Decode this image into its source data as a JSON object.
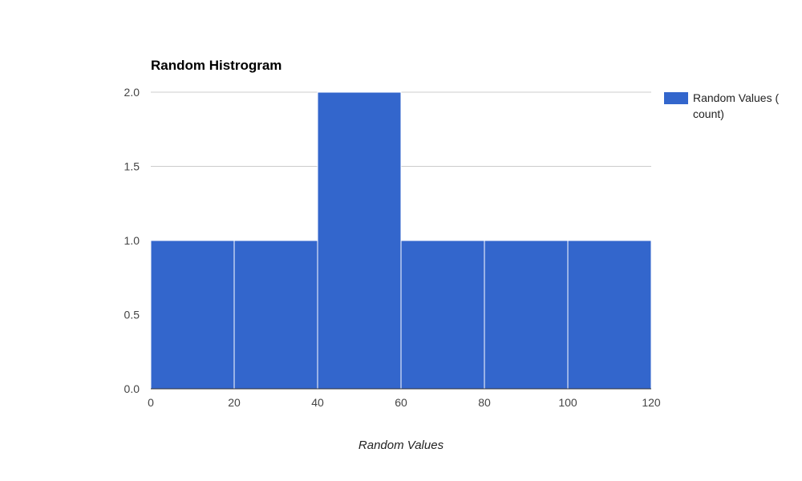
{
  "chart_data": {
    "type": "bar",
    "title": "Random Histrogram",
    "xlabel": "Random Values",
    "ylabel": "",
    "xlim": [
      0,
      120
    ],
    "ylim": [
      0,
      2
    ],
    "x_ticks": [
      0,
      20,
      40,
      60,
      80,
      100,
      120
    ],
    "y_ticks": [
      "0.0",
      "0.5",
      "1.0",
      "1.5",
      "2.0"
    ],
    "bins": [
      {
        "start": 0,
        "end": 20,
        "count": 1
      },
      {
        "start": 20,
        "end": 40,
        "count": 1
      },
      {
        "start": 40,
        "end": 60,
        "count": 2
      },
      {
        "start": 60,
        "end": 80,
        "count": 1
      },
      {
        "start": 80,
        "end": 100,
        "count": 1
      },
      {
        "start": 100,
        "end": 120,
        "count": 1
      }
    ],
    "series": [
      {
        "name_line1": "Random Values (",
        "name_line2": "count)",
        "color": "#3366cc"
      }
    ],
    "grid": true,
    "legend_position": "right"
  }
}
